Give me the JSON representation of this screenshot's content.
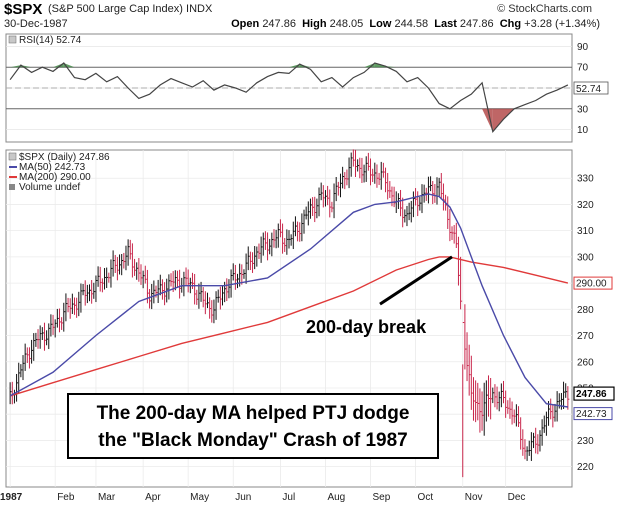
{
  "header": {
    "symbol": "$SPX",
    "name": "(S&P 500 Large Cap Index)",
    "exchange": "INDX",
    "date": "30-Dec-1987",
    "watermark": "© StockCharts.com",
    "open_label": "Open",
    "open": "247.86",
    "high_label": "High",
    "high": "248.05",
    "low_label": "Low",
    "low": "244.58",
    "last_label": "Last",
    "last": "247.86",
    "chg_label": "Chg",
    "chg": "+3.28 (+1.34%)"
  },
  "rsi_legend": "RSI(14) 52.74",
  "price_legend": {
    "series": "$SPX (Daily) 247.86",
    "ma50": "MA(50) 242.73",
    "ma200": "MA(200) 290.00",
    "volume": "Volume undef"
  },
  "annotations": {
    "box_line1": "The 200-day MA helped PTJ dodge",
    "box_line2": "the \"Black Monday\" Crash of 1987",
    "break_label": "200-day break"
  },
  "value_tags": {
    "last": "247.86",
    "ma200": "290.00",
    "ma50": "242.73",
    "rsi": "52.74"
  },
  "colors": {
    "ma50": "#4a4aa8",
    "ma200": "#e03a3a",
    "price_up": "#111111",
    "price_down": "#c8254a",
    "rsi_fill": "#2e7d32"
  },
  "chart_data": [
    {
      "type": "line",
      "title": "RSI(14) 52.74",
      "ylim": [
        0,
        100
      ],
      "yticks": [
        10,
        30,
        50,
        70,
        90
      ],
      "reference_lines": [
        30,
        70
      ],
      "x": [
        1,
        6,
        11,
        16,
        21,
        26,
        31,
        36,
        41,
        46,
        51,
        56,
        61,
        66,
        71,
        76,
        81,
        86,
        91,
        96,
        101,
        106,
        111,
        116,
        121,
        126,
        131,
        136,
        141,
        146,
        151,
        156,
        161,
        166,
        171,
        176,
        181,
        186,
        191,
        196,
        201,
        206,
        211,
        216,
        221,
        226,
        231,
        236,
        241,
        246,
        251,
        256,
        261
      ],
      "values": [
        58,
        72,
        65,
        70,
        66,
        74,
        60,
        58,
        64,
        56,
        61,
        50,
        40,
        44,
        53,
        59,
        55,
        51,
        57,
        48,
        53,
        50,
        46,
        55,
        61,
        65,
        64,
        73,
        68,
        56,
        60,
        51,
        60,
        65,
        74,
        71,
        66,
        56,
        60,
        50,
        35,
        30,
        38,
        44,
        55,
        8,
        20,
        30,
        34,
        38,
        44,
        48,
        53
      ]
    },
    {
      "type": "line",
      "title": "$SPX (Daily) 247.86",
      "xlabel": "",
      "ylabel": "",
      "ylim": [
        213,
        340
      ],
      "yticks": [
        220,
        230,
        240,
        250,
        260,
        270,
        280,
        290,
        300,
        310,
        320,
        330
      ],
      "categories": [
        "1987",
        "Feb",
        "Mar",
        "Apr",
        "May",
        "Jun",
        "Jul",
        "Aug",
        "Sep",
        "Oct",
        "Nov",
        "Dec"
      ],
      "category_days": [
        1,
        22,
        41,
        63,
        84,
        105,
        127,
        148,
        169,
        190,
        212,
        232
      ],
      "series": [
        {
          "name": "$SPX (Daily)",
          "x": [
            1,
            6,
            11,
            16,
            21,
            26,
            31,
            36,
            41,
            46,
            51,
            56,
            61,
            66,
            71,
            76,
            81,
            86,
            91,
            96,
            101,
            106,
            111,
            116,
            121,
            126,
            131,
            136,
            141,
            146,
            151,
            156,
            161,
            166,
            171,
            176,
            181,
            186,
            191,
            196,
            201,
            203,
            205,
            207,
            209,
            211,
            216,
            221,
            226,
            231,
            236,
            241,
            246,
            251,
            256,
            261
          ],
          "values": [
            246,
            257,
            266,
            270,
            273,
            279,
            282,
            286,
            289,
            293,
            297,
            301,
            294,
            286,
            287,
            290,
            291,
            289,
            283,
            280,
            288,
            292,
            296,
            302,
            305,
            308,
            306,
            312,
            318,
            323,
            321,
            330,
            336,
            333,
            332,
            329,
            320,
            316,
            322,
            325,
            327,
            321,
            315,
            310,
            304,
            282,
            246,
            242,
            248,
            245,
            240,
            226,
            229,
            238,
            244,
            248
          ]
        },
        {
          "name": "MA(50)",
          "x": [
            1,
            21,
            41,
            61,
            81,
            101,
            121,
            141,
            161,
            171,
            181,
            191,
            196,
            201,
            206,
            211,
            216,
            221,
            231,
            241,
            251,
            261
          ],
          "values": [
            247,
            256,
            270,
            283,
            289,
            289,
            292,
            303,
            317,
            320,
            321,
            323,
            324,
            323,
            319,
            311,
            300,
            289,
            270,
            254,
            244,
            242.73
          ]
        },
        {
          "name": "MA(200)",
          "x": [
            1,
            21,
            41,
            61,
            81,
            101,
            121,
            141,
            161,
            181,
            196,
            201,
            206,
            216,
            231,
            246,
            261
          ],
          "values": [
            247,
            252,
            257,
            262,
            267,
            271,
            275,
            281,
            287,
            295,
            299,
            300,
            300,
            298,
            296,
            293,
            290
          ]
        }
      ]
    }
  ]
}
